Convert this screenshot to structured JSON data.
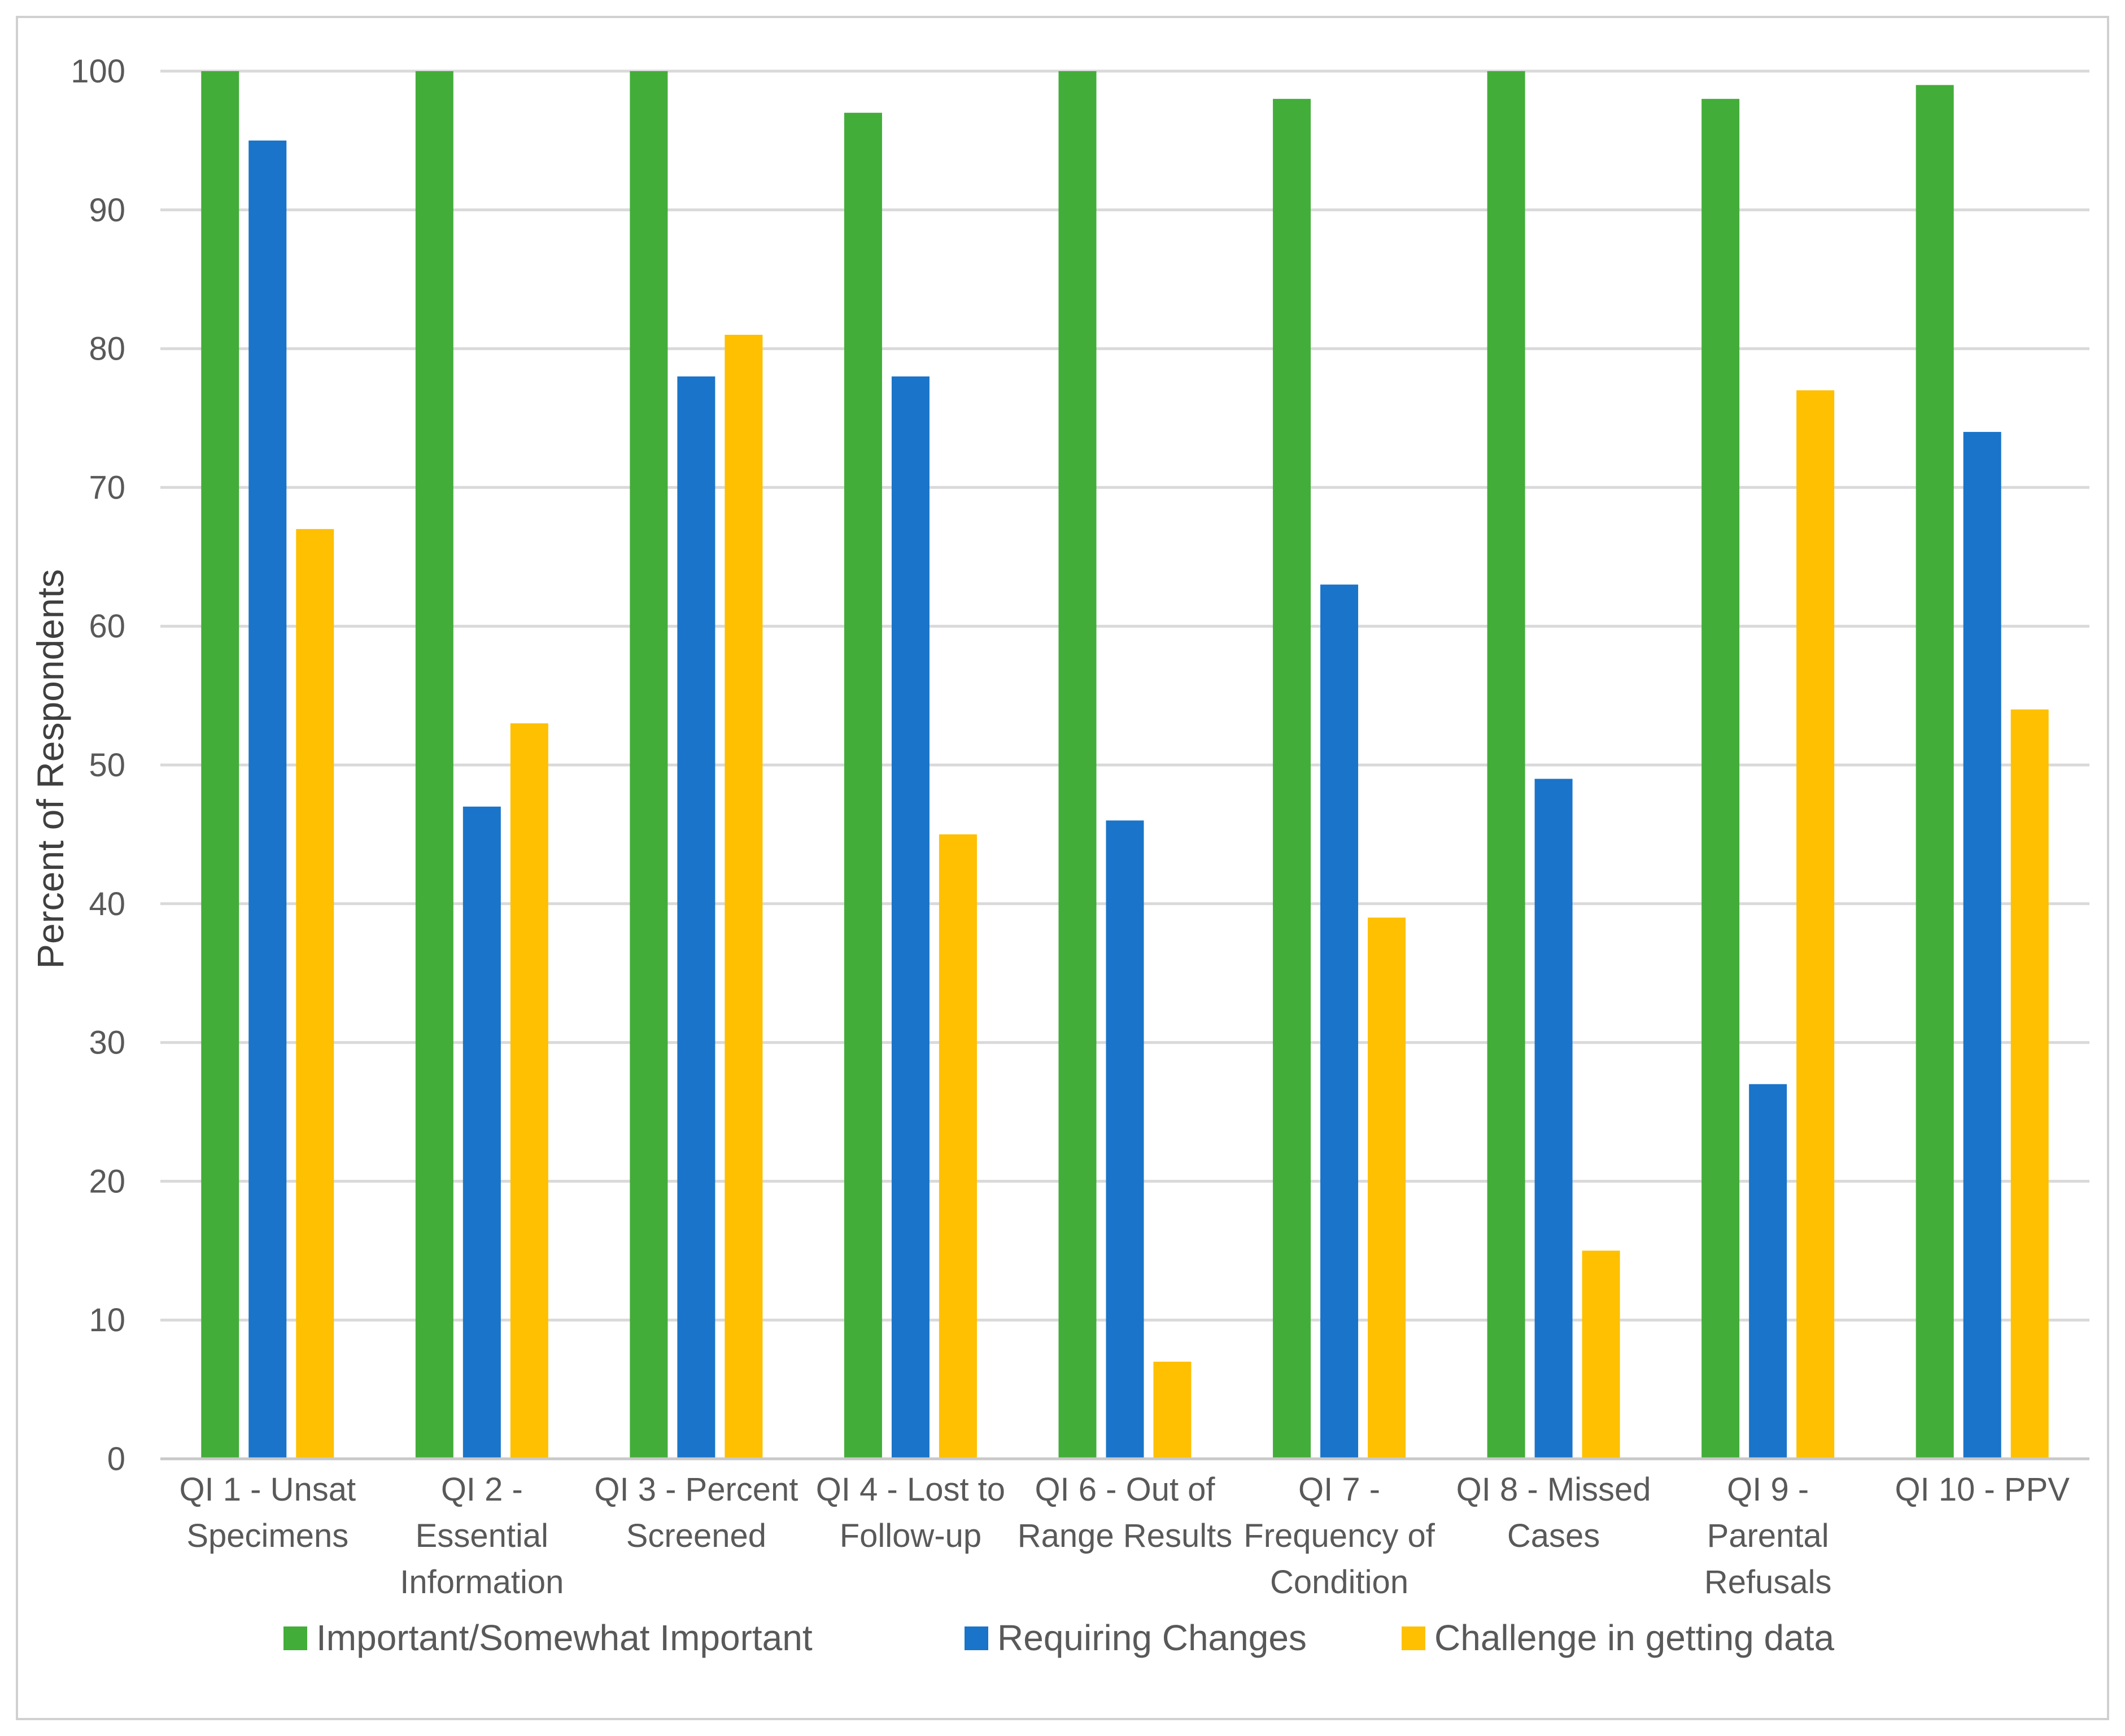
{
  "chart_data": {
    "type": "bar",
    "title": "",
    "xlabel": "",
    "ylabel": "Percent of Respondents",
    "ylim": [
      0,
      100
    ],
    "yticks": [
      0,
      10,
      20,
      30,
      40,
      50,
      60,
      70,
      80,
      90,
      100
    ],
    "grid": true,
    "legend_position": "bottom",
    "categories": [
      [
        "QI 1 - Unsat",
        "Specimens"
      ],
      [
        "QI 2 -",
        "Essential",
        "Information"
      ],
      [
        "QI 3 - Percent",
        "Screened"
      ],
      [
        "QI 4 - Lost to",
        "Follow-up"
      ],
      [
        "QI 6 - Out of",
        "Range Results"
      ],
      [
        "QI 7 -",
        "Frequency of",
        "Condition"
      ],
      [
        "QI 8 - Missed",
        "Cases"
      ],
      [
        "QI 9 -",
        "Parental",
        "Refusals"
      ],
      [
        "QI 10 - PPV"
      ]
    ],
    "series": [
      {
        "name": "Important/Somewhat Important",
        "color": "#43ad3a",
        "values": [
          100,
          100,
          100,
          97,
          100,
          98,
          100,
          98,
          99
        ]
      },
      {
        "name": "Requiring Changes",
        "color": "#1a74c9",
        "values": [
          95,
          47,
          78,
          78,
          46,
          63,
          49,
          27,
          74
        ]
      },
      {
        "name": "Challenge in getting data",
        "color": "#fec000",
        "values": [
          67,
          53,
          81,
          45,
          7,
          39,
          15,
          77,
          54
        ]
      }
    ]
  }
}
